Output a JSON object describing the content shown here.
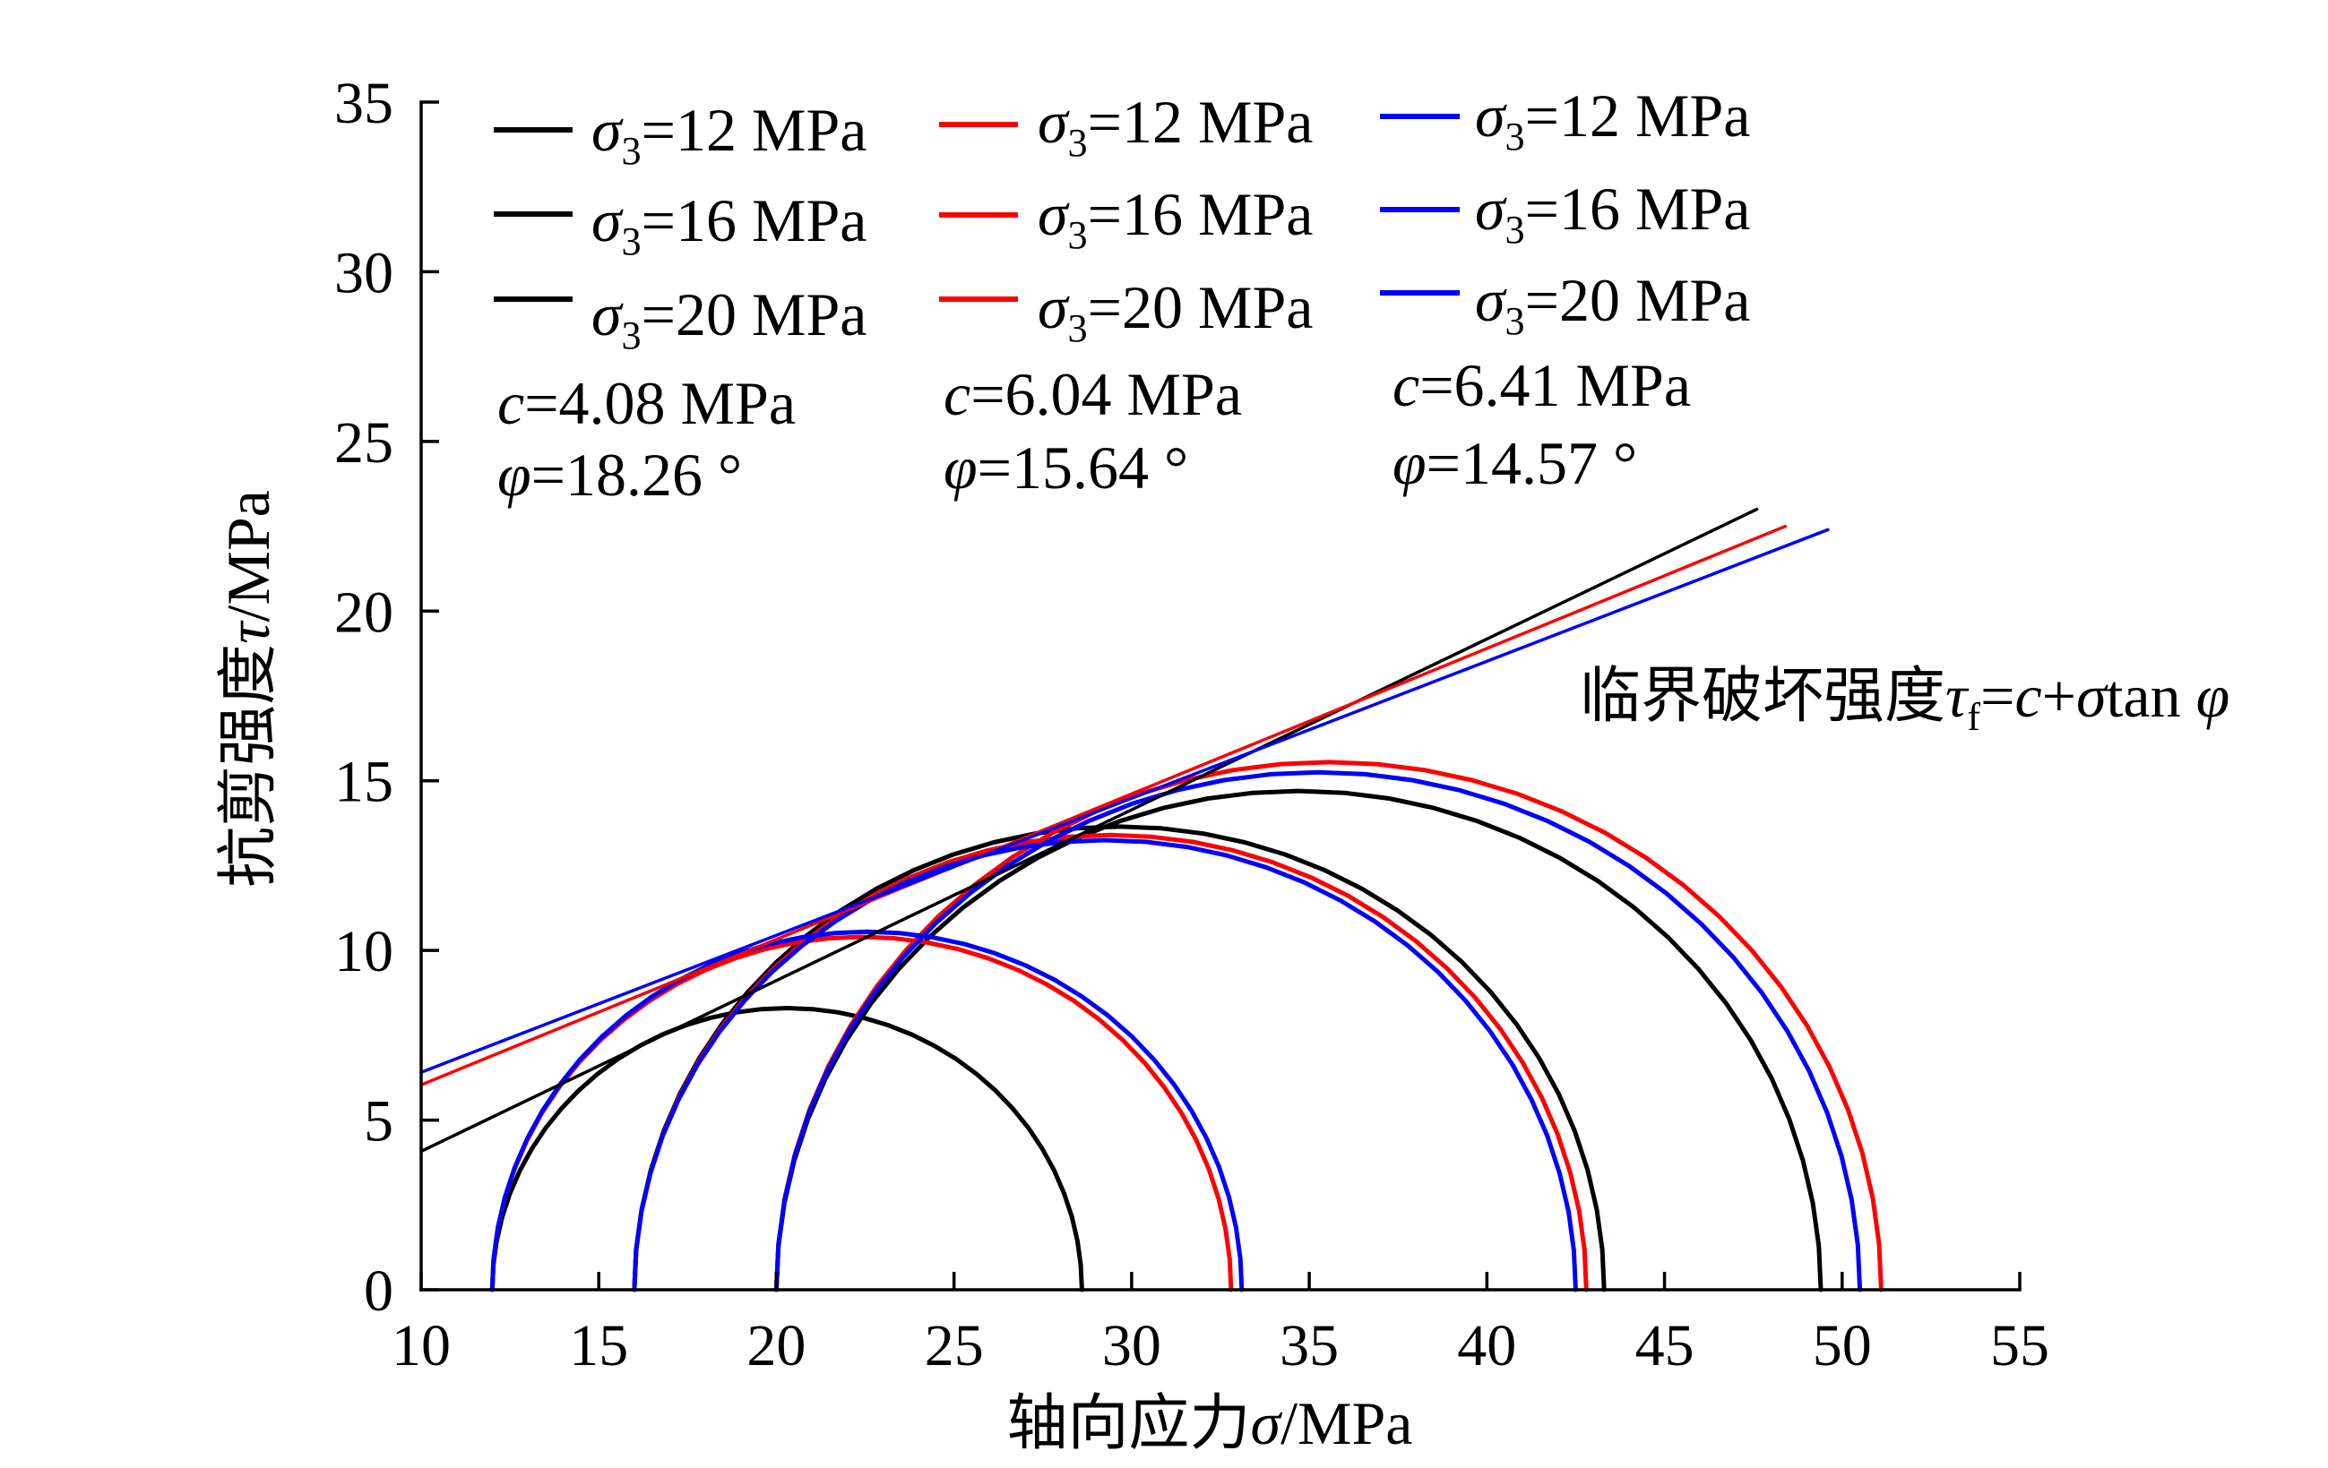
{
  "chart_data": {
    "type": "line",
    "xlabel": "轴向应力σ/MPa",
    "ylabel": "抗剪强度τ/MPa",
    "xlim": [
      10,
      55
    ],
    "ylim": [
      0,
      35
    ],
    "xticks": [
      10,
      15,
      20,
      25,
      30,
      35,
      40,
      45,
      50,
      55
    ],
    "yticks": [
      0,
      5,
      10,
      15,
      20,
      25,
      30,
      35
    ],
    "grid": false,
    "legend_position": "top",
    "annotation": "临界破坏强度τf=c+σtan φ",
    "groups": [
      {
        "color": "#000000",
        "c_label": "c=4.08 MPa",
        "phi_label": "φ=18.26 °",
        "series": [
          {
            "name": "σ3=12 MPa",
            "sigma3": 12,
            "sigma1": 28.6
          },
          {
            "name": "σ3=16 MPa",
            "sigma3": 16,
            "sigma1": 43.3
          },
          {
            "name": "σ3=20 MPa",
            "sigma3": 20,
            "sigma1": 49.4
          }
        ],
        "envelope": {
          "x": [
            10,
            47.6
          ],
          "y": [
            4.08,
            23.0
          ]
        }
      },
      {
        "color": "#ff0000",
        "c_label": "c=6.04 MPa",
        "phi_label": "φ=15.64 °",
        "series": [
          {
            "name": "σ3=12 MPa",
            "sigma3": 12,
            "sigma1": 32.8
          },
          {
            "name": "σ3=16 MPa",
            "sigma3": 16,
            "sigma1": 42.8
          },
          {
            "name": "σ3=20 MPa",
            "sigma3": 20,
            "sigma1": 51.1
          }
        ],
        "envelope": {
          "x": [
            10,
            48.4
          ],
          "y": [
            6.04,
            22.5
          ]
        }
      },
      {
        "color": "#0000ff",
        "c_label": "c=6.41 MPa",
        "phi_label": "φ=14.57 °",
        "series": [
          {
            "name": "σ3=12 MPa",
            "sigma3": 12,
            "sigma1": 33.1
          },
          {
            "name": "σ3=16 MPa",
            "sigma3": 16,
            "sigma1": 42.5
          },
          {
            "name": "σ3=20 MPa",
            "sigma3": 20,
            "sigma1": 50.5
          }
        ],
        "envelope": {
          "x": [
            10,
            49.6
          ],
          "y": [
            6.41,
            22.4
          ]
        }
      }
    ]
  }
}
